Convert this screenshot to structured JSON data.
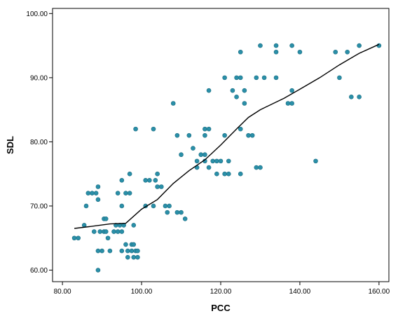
{
  "chart_data": {
    "type": "scatter",
    "xlabel": "PCC",
    "ylabel": "SDL",
    "xlim": [
      77.5,
      162.5
    ],
    "ylim": [
      58.2,
      100.8
    ],
    "x_ticks": [
      80,
      100,
      120,
      140,
      160
    ],
    "y_ticks": [
      60,
      70,
      80,
      90,
      100
    ],
    "x_tick_labels": [
      "80.00",
      "100.00",
      "120.00",
      "140.00",
      "160.00"
    ],
    "y_tick_labels": [
      "60.00",
      "70.00",
      "80.00",
      "90.00",
      "100.00"
    ],
    "grid": false,
    "legend": "none",
    "point_color": "#2a8fa8",
    "line_color": "#000000",
    "points": [
      [
        83,
        65
      ],
      [
        84,
        65
      ],
      [
        85.5,
        67
      ],
      [
        86,
        70
      ],
      [
        86.5,
        72
      ],
      [
        87.5,
        72
      ],
      [
        88.5,
        72
      ],
      [
        88,
        66
      ],
      [
        89,
        73
      ],
      [
        89,
        71
      ],
      [
        89,
        63
      ],
      [
        89,
        60
      ],
      [
        89.5,
        66
      ],
      [
        90,
        63
      ],
      [
        90.5,
        66
      ],
      [
        90.5,
        68
      ],
      [
        91,
        68
      ],
      [
        91,
        66
      ],
      [
        91.5,
        65
      ],
      [
        92,
        63
      ],
      [
        93,
        66
      ],
      [
        93.5,
        67
      ],
      [
        94,
        72
      ],
      [
        94,
        66
      ],
      [
        94.5,
        67
      ],
      [
        95,
        74
      ],
      [
        95,
        70
      ],
      [
        95,
        63
      ],
      [
        95,
        66
      ],
      [
        95.5,
        67
      ],
      [
        96,
        72
      ],
      [
        96,
        64
      ],
      [
        96.5,
        62
      ],
      [
        96.5,
        63
      ],
      [
        97,
        75
      ],
      [
        97,
        72
      ],
      [
        97.5,
        64
      ],
      [
        97.5,
        63
      ],
      [
        98,
        67
      ],
      [
        98,
        64
      ],
      [
        98,
        62
      ],
      [
        98.5,
        82
      ],
      [
        98.5,
        63
      ],
      [
        99,
        62
      ],
      [
        99,
        63
      ],
      [
        101,
        74
      ],
      [
        101,
        70
      ],
      [
        102,
        74
      ],
      [
        103,
        82
      ],
      [
        103,
        70
      ],
      [
        103.5,
        74
      ],
      [
        104,
        75
      ],
      [
        104,
        73
      ],
      [
        105,
        73
      ],
      [
        106,
        70
      ],
      [
        106.5,
        69
      ],
      [
        107,
        70
      ],
      [
        108,
        86
      ],
      [
        109,
        81
      ],
      [
        109,
        69
      ],
      [
        110,
        78
      ],
      [
        110,
        69
      ],
      [
        111,
        68
      ],
      [
        112,
        81
      ],
      [
        113,
        79
      ],
      [
        114,
        77
      ],
      [
        114,
        76
      ],
      [
        115,
        78
      ],
      [
        116,
        78
      ],
      [
        116,
        81
      ],
      [
        116,
        82
      ],
      [
        116,
        77
      ],
      [
        117,
        88
      ],
      [
        117,
        82
      ],
      [
        117,
        76
      ],
      [
        118,
        77
      ],
      [
        119,
        77
      ],
      [
        119,
        75
      ],
      [
        120,
        77
      ],
      [
        121,
        90
      ],
      [
        121,
        81
      ],
      [
        121,
        75
      ],
      [
        122,
        75
      ],
      [
        122,
        77
      ],
      [
        123,
        88
      ],
      [
        124,
        90
      ],
      [
        124,
        87
      ],
      [
        125,
        94
      ],
      [
        125,
        90
      ],
      [
        125,
        82
      ],
      [
        125,
        75
      ],
      [
        126,
        88
      ],
      [
        126,
        86
      ],
      [
        127,
        81
      ],
      [
        128,
        81
      ],
      [
        129,
        90
      ],
      [
        129,
        76
      ],
      [
        130,
        95
      ],
      [
        130,
        76
      ],
      [
        131,
        90
      ],
      [
        134,
        95
      ],
      [
        134,
        94
      ],
      [
        134,
        90
      ],
      [
        137,
        86
      ],
      [
        138,
        95
      ],
      [
        138,
        86
      ],
      [
        138,
        88
      ],
      [
        140,
        94
      ],
      [
        144,
        77
      ],
      [
        149,
        94
      ],
      [
        150,
        90
      ],
      [
        152,
        94
      ],
      [
        153,
        87
      ],
      [
        155,
        95
      ],
      [
        155,
        87
      ],
      [
        160,
        95
      ]
    ],
    "fit_line": [
      [
        83,
        66.5
      ],
      [
        87,
        66.8
      ],
      [
        92,
        67.2
      ],
      [
        96,
        67.3
      ],
      [
        100,
        69.5
      ],
      [
        104,
        71
      ],
      [
        108,
        73.5
      ],
      [
        112,
        75.5
      ],
      [
        116,
        77.2
      ],
      [
        120,
        79.5
      ],
      [
        124,
        82
      ],
      [
        127,
        83.8
      ],
      [
        130,
        85
      ],
      [
        136,
        86.8
      ],
      [
        140,
        88.2
      ],
      [
        145,
        90
      ],
      [
        150,
        92
      ],
      [
        155,
        93.8
      ],
      [
        160,
        95.2
      ]
    ]
  }
}
